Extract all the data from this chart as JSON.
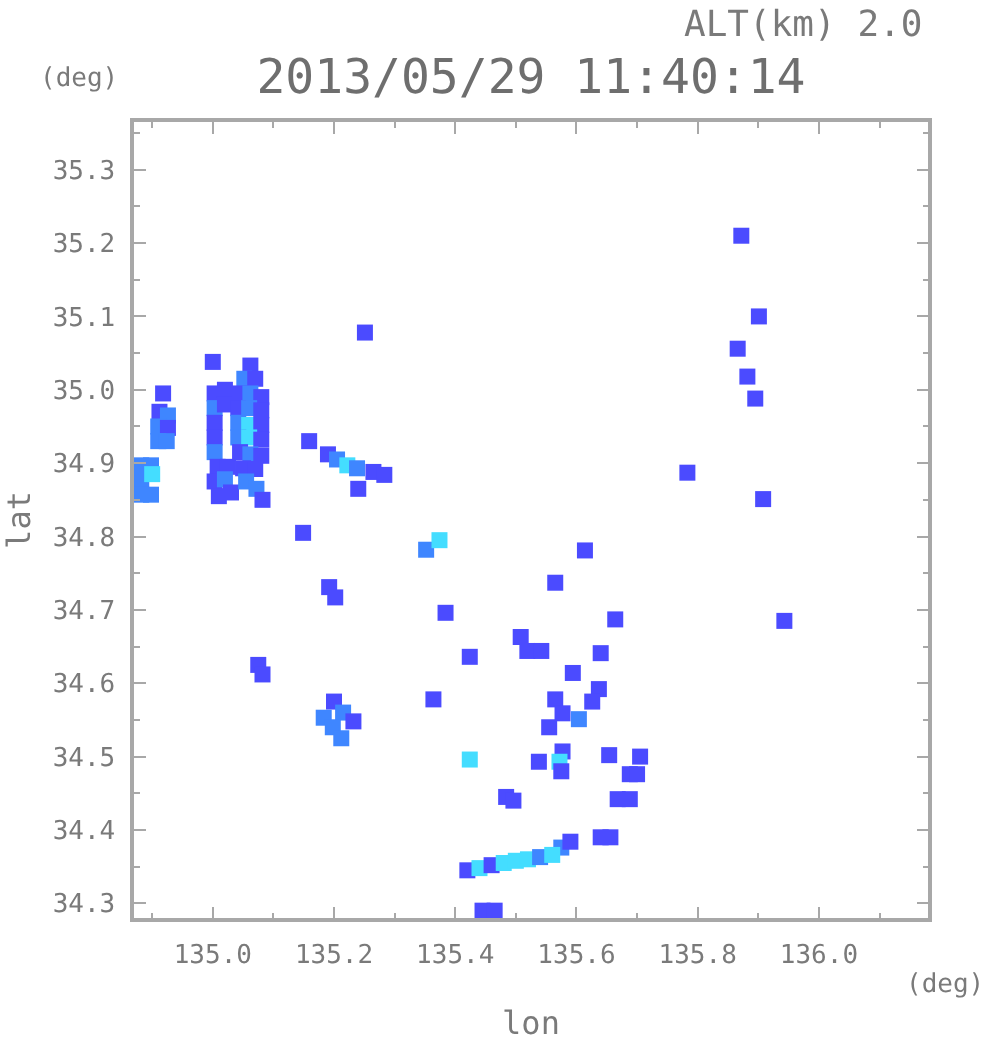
{
  "chart_data": {
    "type": "scatter",
    "title": "2013/05/29 11:40:14",
    "xlabel": "lon",
    "ylabel": "lat",
    "annotations": [
      "ALT(km) 2.0",
      "(deg)",
      "(deg)"
    ],
    "x": [
      134.882,
      134.898,
      134.882,
      134.9,
      134.882,
      134.898,
      134.918,
      134.912,
      134.926,
      134.91,
      134.926,
      134.91,
      134.924,
      135.003,
      135.02,
      135.003,
      135.02,
      135.003,
      135.003,
      135.003,
      135.008,
      135.025,
      135.003,
      135.02,
      135.01,
      135.03,
      135.0,
      135.062,
      135.052,
      135.07,
      135.045,
      135.062,
      135.08,
      135.042,
      135.06,
      135.08,
      135.042,
      135.06,
      135.08,
      135.042,
      135.06,
      135.08,
      135.045,
      135.062,
      135.08,
      135.05,
      135.07,
      135.055,
      135.072,
      135.082,
      135.19,
      135.205,
      135.222,
      135.238,
      135.265,
      135.283,
      135.24,
      135.159,
      135.251,
      135.352,
      135.374,
      135.149,
      135.192,
      135.202,
      135.384,
      135.424,
      135.364,
      135.075,
      135.082,
      135.2,
      135.215,
      135.232,
      135.183,
      135.198,
      135.212,
      135.424,
      135.872,
      135.901,
      135.866,
      135.882,
      135.895,
      135.783,
      135.908,
      135.614,
      135.565,
      135.664,
      135.943,
      135.519,
      135.542,
      135.64,
      135.508,
      135.594,
      135.637,
      135.565,
      135.626,
      135.577,
      135.604,
      135.555,
      135.577,
      135.572,
      135.575,
      135.538,
      135.654,
      135.705,
      135.688,
      135.7,
      135.668,
      135.688,
      135.484,
      135.496,
      135.64,
      135.656,
      135.575,
      135.59,
      135.42,
      135.44,
      135.46,
      135.48,
      135.5,
      135.52,
      135.54,
      135.56,
      135.445,
      135.465
    ],
    "values": [
      34.897,
      34.897,
      34.877,
      34.885,
      34.857,
      34.857,
      34.995,
      34.97,
      34.965,
      34.95,
      34.948,
      34.93,
      34.93,
      34.995,
      35.0,
      34.975,
      34.98,
      34.955,
      34.935,
      34.915,
      34.895,
      34.895,
      34.875,
      34.878,
      34.855,
      34.86,
      35.038,
      35.033,
      35.015,
      35.015,
      34.995,
      34.995,
      34.99,
      34.975,
      34.975,
      34.972,
      34.955,
      34.952,
      34.952,
      34.935,
      34.935,
      34.932,
      34.915,
      34.912,
      34.91,
      34.893,
      34.892,
      34.875,
      34.865,
      34.85,
      34.912,
      34.905,
      34.897,
      34.893,
      34.888,
      34.884,
      34.865,
      34.93,
      35.078,
      34.782,
      34.795,
      34.805,
      34.731,
      34.717,
      34.696,
      34.636,
      34.578,
      34.625,
      34.612,
      34.575,
      34.56,
      34.548,
      34.553,
      34.54,
      34.525,
      34.496,
      35.21,
      35.1,
      35.056,
      35.018,
      34.988,
      34.887,
      34.851,
      34.781,
      34.737,
      34.687,
      34.685,
      34.644,
      34.644,
      34.641,
      34.663,
      34.614,
      34.592,
      34.578,
      34.575,
      34.559,
      34.551,
      34.54,
      34.507,
      34.493,
      34.48,
      34.493,
      34.502,
      34.5,
      34.476,
      34.476,
      34.442,
      34.442,
      34.445,
      34.44,
      34.39,
      34.39,
      34.376,
      34.384,
      34.345,
      34.348,
      34.352,
      34.355,
      34.358,
      34.36,
      34.363,
      34.366,
      34.29,
      34.29
    ],
    "colors": [
      "#3f86ff",
      "#3f86ff",
      "#3f86ff",
      "#44ddff",
      "#3f86ff",
      "#3f86ff",
      "#4b4bff",
      "#4b4bff",
      "#3f86ff",
      "#3f86ff",
      "#4b4bff",
      "#3f86ff",
      "#3f86ff",
      "#4b4bff",
      "#4b4bff",
      "#3f86ff",
      "#4b4bff",
      "#4b4bff",
      "#4b4bff",
      "#3f86ff",
      "#4b4bff",
      "#4b4bff",
      "#4b4bff",
      "#3f86ff",
      "#4b4bff",
      "#4b4bff",
      "#4b4bff",
      "#4b4bff",
      "#3f86ff",
      "#4b4bff",
      "#4b4bff",
      "#3f86ff",
      "#4b4bff",
      "#4b4bff",
      "#3f86ff",
      "#4b4bff",
      "#3f86ff",
      "#44ddff",
      "#4b4bff",
      "#3f86ff",
      "#44ddff",
      "#4b4bff",
      "#4b4bff",
      "#3f86ff",
      "#4b4bff",
      "#4b4bff",
      "#4b4bff",
      "#3f86ff",
      "#3f86ff",
      "#4b4bff",
      "#4b4bff",
      "#3f86ff",
      "#44ddff",
      "#3f86ff",
      "#4b4bff",
      "#4b4bff",
      "#4b4bff",
      "#4b4bff",
      "#4b4bff",
      "#3f86ff",
      "#44ddff",
      "#4b4bff",
      "#4b4bff",
      "#4b4bff",
      "#4b4bff",
      "#4b4bff",
      "#4b4bff",
      "#4b4bff",
      "#4b4bff",
      "#4b4bff",
      "#3f86ff",
      "#4b4bff",
      "#3f86ff",
      "#3f86ff",
      "#3f86ff",
      "#44ddff",
      "#4b4bff",
      "#4b4bff",
      "#4b4bff",
      "#4b4bff",
      "#4b4bff",
      "#4b4bff",
      "#4b4bff",
      "#4b4bff",
      "#4b4bff",
      "#4b4bff",
      "#4b4bff",
      "#4b4bff",
      "#4b4bff",
      "#4b4bff",
      "#4b4bff",
      "#4b4bff",
      "#4b4bff",
      "#4b4bff",
      "#4b4bff",
      "#4b4bff",
      "#3f86ff",
      "#4b4bff",
      "#4b4bff",
      "#44ddff",
      "#4b4bff",
      "#4b4bff",
      "#4b4bff",
      "#4b4bff",
      "#4b4bff",
      "#4b4bff",
      "#4b4bff",
      "#4b4bff",
      "#4b4bff",
      "#4b4bff",
      "#4b4bff",
      "#4b4bff",
      "#3f86ff",
      "#4b4bff",
      "#4b4bff",
      "#44ddff",
      "#4b4bff",
      "#44ddff",
      "#44ddff",
      "#44ddff",
      "#3f86ff",
      "#44ddff",
      "#4b4bff",
      "#4b4bff"
    ],
    "xlim": [
      134.87,
      136.18
    ],
    "ylim": [
      34.28,
      35.365
    ],
    "xticks": [
      {
        "value": 134.9,
        "label": null
      },
      {
        "value": 135,
        "label": "135.0"
      },
      {
        "value": 135.1,
        "label": null
      },
      135.2,
      {
        "value": 135.3,
        "label": null
      },
      135.4,
      {
        "value": 135.5,
        "label": null
      },
      135.6,
      {
        "value": 135.7,
        "label": null
      },
      135.8,
      {
        "value": 135.9,
        "label": null
      },
      {
        "value": 136,
        "label": "136.0"
      },
      {
        "value": 136.1,
        "label": null
      }
    ],
    "yticks": [
      34.3,
      {
        "value": 34.35,
        "label": null
      },
      34.4,
      {
        "value": 34.45,
        "label": null
      },
      34.5,
      {
        "value": 34.55,
        "label": null
      },
      34.6,
      {
        "value": 34.65,
        "label": null
      },
      34.7,
      {
        "value": 34.75,
        "label": null
      },
      34.8,
      {
        "value": 34.85,
        "label": null
      },
      34.9,
      {
        "value": 34.95,
        "label": null
      },
      {
        "value": 35,
        "label": "35.0"
      },
      {
        "value": 35.05,
        "label": null
      },
      35.1,
      {
        "value": 35.15,
        "label": null
      },
      35.2,
      {
        "value": 35.25,
        "label": null
      },
      35.3,
      {
        "value": 35.35,
        "label": null
      }
    ],
    "marker": "square",
    "grid": false
  }
}
